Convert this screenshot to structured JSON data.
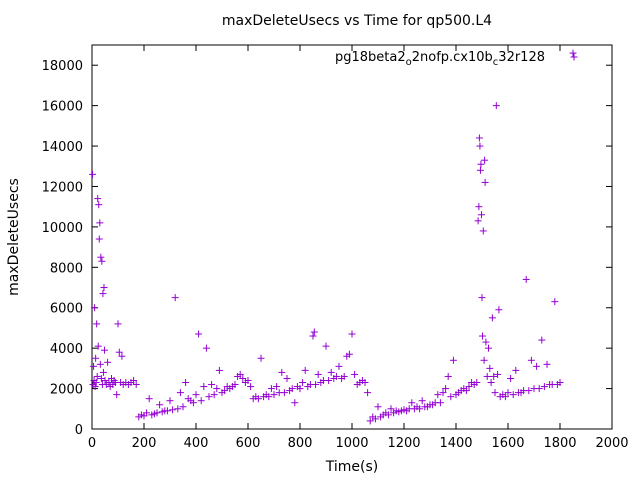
{
  "chart_data": {
    "type": "scatter",
    "title": "maxDeleteUsecs vs Time for qp500.L4",
    "xlabel": "Time(s)",
    "ylabel": "maxDeleteUsecs",
    "xlim": [
      0,
      2000
    ],
    "ylim": [
      0,
      19000
    ],
    "xticks": [
      0,
      200,
      400,
      600,
      800,
      1000,
      1200,
      1400,
      1600,
      1800,
      2000
    ],
    "yticks": [
      0,
      2000,
      4000,
      6000,
      8000,
      10000,
      12000,
      14000,
      16000,
      18000
    ],
    "grid": false,
    "legend_position": "top-right",
    "marker": "plus",
    "color": "#9400d3",
    "series": [
      {
        "name": "pg18beta2_o2nofp.cx10b_c32r128",
        "name_main_1": "pg18beta2",
        "name_sub_1": "o",
        "name_main_2": "2nofp.cx10b",
        "name_sub_2": "c",
        "name_main_3": "32r128",
        "points": [
          [
            2,
            12600
          ],
          [
            4,
            2200
          ],
          [
            6,
            3100
          ],
          [
            8,
            2400
          ],
          [
            10,
            6000
          ],
          [
            12,
            2100
          ],
          [
            14,
            3500
          ],
          [
            16,
            2300
          ],
          [
            18,
            5200
          ],
          [
            20,
            2600
          ],
          [
            22,
            11400
          ],
          [
            24,
            4100
          ],
          [
            26,
            11100
          ],
          [
            28,
            9400
          ],
          [
            30,
            10200
          ],
          [
            32,
            3200
          ],
          [
            34,
            8500
          ],
          [
            36,
            2500
          ],
          [
            38,
            8300
          ],
          [
            40,
            2200
          ],
          [
            42,
            6700
          ],
          [
            44,
            2800
          ],
          [
            46,
            7000
          ],
          [
            48,
            3900
          ],
          [
            50,
            2400
          ],
          [
            55,
            2200
          ],
          [
            60,
            3300
          ],
          [
            65,
            2300
          ],
          [
            70,
            2100
          ],
          [
            75,
            2500
          ],
          [
            80,
            2200
          ],
          [
            85,
            2400
          ],
          [
            90,
            2300
          ],
          [
            95,
            1700
          ],
          [
            100,
            5200
          ],
          [
            105,
            3800
          ],
          [
            110,
            2300
          ],
          [
            115,
            3600
          ],
          [
            120,
            2200
          ],
          [
            130,
            2300
          ],
          [
            140,
            2200
          ],
          [
            150,
            2300
          ],
          [
            160,
            2400
          ],
          [
            170,
            2200
          ],
          [
            180,
            600
          ],
          [
            190,
            700
          ],
          [
            200,
            650
          ],
          [
            210,
            800
          ],
          [
            220,
            1500
          ],
          [
            230,
            700
          ],
          [
            240,
            750
          ],
          [
            250,
            800
          ],
          [
            260,
            1200
          ],
          [
            270,
            850
          ],
          [
            280,
            900
          ],
          [
            290,
            900
          ],
          [
            300,
            1400
          ],
          [
            310,
            950
          ],
          [
            320,
            6500
          ],
          [
            330,
            1000
          ],
          [
            340,
            1800
          ],
          [
            350,
            1100
          ],
          [
            360,
            2300
          ],
          [
            370,
            1500
          ],
          [
            380,
            1400
          ],
          [
            390,
            1300
          ],
          [
            400,
            1700
          ],
          [
            410,
            4700
          ],
          [
            420,
            1400
          ],
          [
            430,
            2100
          ],
          [
            440,
            4000
          ],
          [
            450,
            1600
          ],
          [
            460,
            2200
          ],
          [
            470,
            1700
          ],
          [
            480,
            2000
          ],
          [
            490,
            2900
          ],
          [
            500,
            1800
          ],
          [
            510,
            1900
          ],
          [
            520,
            2100
          ],
          [
            530,
            2000
          ],
          [
            540,
            2100
          ],
          [
            550,
            2200
          ],
          [
            560,
            2600
          ],
          [
            570,
            2700
          ],
          [
            580,
            2500
          ],
          [
            590,
            2300
          ],
          [
            600,
            2400
          ],
          [
            610,
            2100
          ],
          [
            620,
            1500
          ],
          [
            630,
            1600
          ],
          [
            640,
            1500
          ],
          [
            650,
            3500
          ],
          [
            660,
            1600
          ],
          [
            670,
            1700
          ],
          [
            680,
            1600
          ],
          [
            690,
            2000
          ],
          [
            700,
            1700
          ],
          [
            710,
            2100
          ],
          [
            720,
            1800
          ],
          [
            730,
            2800
          ],
          [
            740,
            1800
          ],
          [
            750,
            2500
          ],
          [
            760,
            1900
          ],
          [
            770,
            2000
          ],
          [
            780,
            1300
          ],
          [
            790,
            2100
          ],
          [
            800,
            2000
          ],
          [
            810,
            2300
          ],
          [
            820,
            2900
          ],
          [
            830,
            2100
          ],
          [
            840,
            2200
          ],
          [
            850,
            4600
          ],
          [
            855,
            4800
          ],
          [
            860,
            2200
          ],
          [
            870,
            2700
          ],
          [
            880,
            2300
          ],
          [
            890,
            2400
          ],
          [
            900,
            4100
          ],
          [
            910,
            2400
          ],
          [
            920,
            2800
          ],
          [
            930,
            2500
          ],
          [
            940,
            2600
          ],
          [
            950,
            3100
          ],
          [
            960,
            2500
          ],
          [
            970,
            2600
          ],
          [
            980,
            3600
          ],
          [
            990,
            3700
          ],
          [
            1000,
            4700
          ],
          [
            1010,
            2700
          ],
          [
            1020,
            2200
          ],
          [
            1030,
            2300
          ],
          [
            1040,
            2400
          ],
          [
            1050,
            2300
          ],
          [
            1060,
            1800
          ],
          [
            1070,
            400
          ],
          [
            1080,
            600
          ],
          [
            1090,
            500
          ],
          [
            1100,
            1100
          ],
          [
            1110,
            600
          ],
          [
            1120,
            700
          ],
          [
            1130,
            800
          ],
          [
            1140,
            700
          ],
          [
            1150,
            1000
          ],
          [
            1160,
            800
          ],
          [
            1170,
            900
          ],
          [
            1180,
            850
          ],
          [
            1190,
            900
          ],
          [
            1200,
            950
          ],
          [
            1210,
            900
          ],
          [
            1220,
            1000
          ],
          [
            1230,
            1300
          ],
          [
            1240,
            1000
          ],
          [
            1250,
            1100
          ],
          [
            1260,
            1000
          ],
          [
            1270,
            1400
          ],
          [
            1280,
            1100
          ],
          [
            1290,
            1100
          ],
          [
            1300,
            1200
          ],
          [
            1310,
            1200
          ],
          [
            1320,
            1300
          ],
          [
            1330,
            1700
          ],
          [
            1340,
            1300
          ],
          [
            1350,
            1800
          ],
          [
            1360,
            2000
          ],
          [
            1370,
            2600
          ],
          [
            1380,
            1600
          ],
          [
            1390,
            3400
          ],
          [
            1400,
            1700
          ],
          [
            1410,
            1800
          ],
          [
            1420,
            1900
          ],
          [
            1430,
            2000
          ],
          [
            1440,
            1900
          ],
          [
            1450,
            2100
          ],
          [
            1460,
            2300
          ],
          [
            1470,
            2200
          ],
          [
            1480,
            2300
          ],
          [
            1485,
            10300
          ],
          [
            1488,
            11000
          ],
          [
            1490,
            14400
          ],
          [
            1492,
            14000
          ],
          [
            1494,
            12800
          ],
          [
            1496,
            13100
          ],
          [
            1498,
            10600
          ],
          [
            1500,
            6500
          ],
          [
            1502,
            4600
          ],
          [
            1505,
            9800
          ],
          [
            1508,
            3400
          ],
          [
            1510,
            13300
          ],
          [
            1512,
            12200
          ],
          [
            1515,
            4300
          ],
          [
            1520,
            2600
          ],
          [
            1525,
            4000
          ],
          [
            1530,
            3000
          ],
          [
            1535,
            2300
          ],
          [
            1540,
            5500
          ],
          [
            1545,
            2600
          ],
          [
            1550,
            1800
          ],
          [
            1555,
            16000
          ],
          [
            1560,
            2700
          ],
          [
            1565,
            5900
          ],
          [
            1570,
            1600
          ],
          [
            1580,
            1700
          ],
          [
            1590,
            1600
          ],
          [
            1600,
            1800
          ],
          [
            1610,
            2500
          ],
          [
            1620,
            1700
          ],
          [
            1630,
            2900
          ],
          [
            1640,
            1800
          ],
          [
            1650,
            1800
          ],
          [
            1660,
            1900
          ],
          [
            1670,
            7400
          ],
          [
            1680,
            1900
          ],
          [
            1690,
            3400
          ],
          [
            1700,
            2000
          ],
          [
            1710,
            3100
          ],
          [
            1720,
            2000
          ],
          [
            1730,
            4400
          ],
          [
            1740,
            2100
          ],
          [
            1750,
            3200
          ],
          [
            1760,
            2200
          ],
          [
            1770,
            2200
          ],
          [
            1780,
            6300
          ],
          [
            1790,
            2200
          ],
          [
            1800,
            2300
          ],
          [
            1850,
            18600
          ]
        ]
      }
    ]
  }
}
